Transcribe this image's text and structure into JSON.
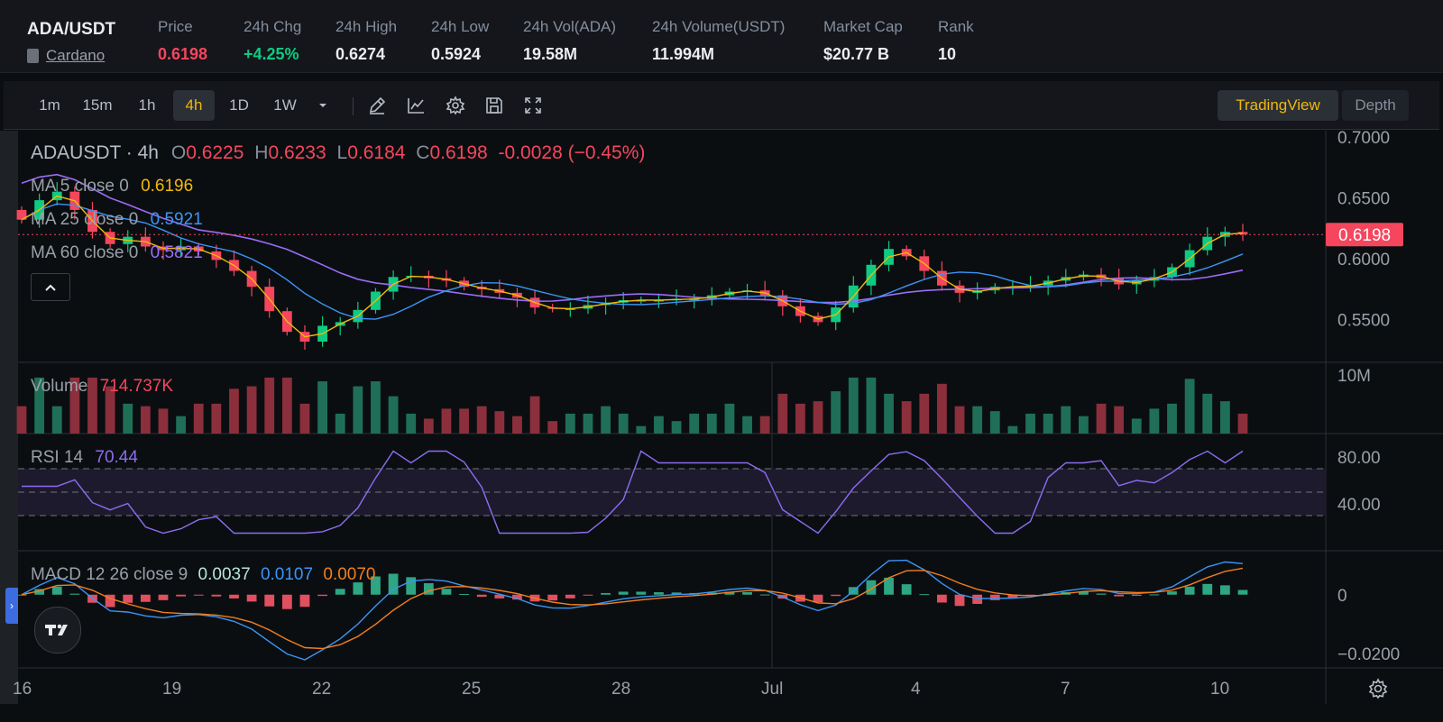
{
  "ticker": {
    "pair": "ADA/USDT",
    "coin_name": "Cardano",
    "stats": [
      {
        "label": "Price",
        "value": "0.6198",
        "color": "#f6465d"
      },
      {
        "label": "24h Chg",
        "value": "+4.25%",
        "color": "#0ecb81"
      },
      {
        "label": "24h High",
        "value": "0.6274",
        "color": "#eaecef"
      },
      {
        "label": "24h Low",
        "value": "0.5924",
        "color": "#eaecef"
      },
      {
        "label": "24h Vol(ADA)",
        "value": "19.58M",
        "color": "#eaecef"
      },
      {
        "label": "24h Volume(USDT)",
        "value": "11.994M",
        "color": "#eaecef"
      },
      {
        "label": "Market Cap",
        "value": "$20.77 B",
        "color": "#eaecef"
      },
      {
        "label": "Rank",
        "value": "10",
        "color": "#eaecef"
      }
    ]
  },
  "toolbar": {
    "intervals": [
      "1m",
      "15m",
      "1h",
      "4h",
      "1D",
      "1W"
    ],
    "active_interval": "4h",
    "icons": [
      "chevron-down-icon",
      "pencil-icon",
      "line-chart-icon",
      "settings-gear-icon",
      "save-icon",
      "fullscreen-icon"
    ],
    "view_tradingview": "TradingView",
    "view_depth": "Depth"
  },
  "legend": {
    "symbol": "ADAUSDT · 4h",
    "o_label": "O",
    "o": "0.6225",
    "h_label": "H",
    "h": "0.6233",
    "l_label": "L",
    "l": "0.6184",
    "c_label": "C",
    "c": "0.6198",
    "change": "-0.0028 (−0.45%)",
    "ma5_label": "MA 5 close 0",
    "ma5": "0.6196",
    "ma25_label": "MA 25 close 0",
    "ma25": "0.5921",
    "ma60_label": "MA 60 close 0",
    "ma60": "0.5821",
    "volume_label": "Volume",
    "volume": "714.737K",
    "rsi_label": "RSI 14",
    "rsi": "70.44",
    "macd_label": "MACD 12 26 close 9",
    "macd_hist": "0.0037",
    "macd_line": "0.0107",
    "macd_signal": "0.0070"
  },
  "axes": {
    "price_ticks": [
      "0.7000",
      "0.6500",
      "0.6000",
      "0.5500"
    ],
    "current_price": "0.6198",
    "volume_tick": "10M",
    "rsi_ticks": [
      "80.00",
      "40.00"
    ],
    "macd_ticks": [
      "0",
      "−0.0200"
    ],
    "date_ticks": [
      "16",
      "19",
      "22",
      "25",
      "28",
      "Jul",
      "4",
      "7",
      "10"
    ]
  },
  "colors": {
    "up": "#0ecb81",
    "down": "#f6465d",
    "accent": "#f0b90b",
    "ma5": "#f0b90b",
    "ma25": "#3b95f5",
    "ma60": "#9b6cf7",
    "rsi": "#8c6cf0",
    "macd_line": "#3b95f5",
    "macd_signal": "#f07f1f"
  },
  "chart_data": {
    "type": "candlestick",
    "symbol": "ADAUSDT",
    "interval": "4h",
    "x": [
      "16",
      "19",
      "22",
      "25",
      "28",
      "Jul",
      "4",
      "7",
      "10"
    ],
    "price_closes": [
      0.632,
      0.648,
      0.655,
      0.64,
      0.622,
      0.612,
      0.618,
      0.61,
      0.607,
      0.61,
      0.606,
      0.599,
      0.59,
      0.577,
      0.557,
      0.54,
      0.532,
      0.545,
      0.548,
      0.558,
      0.573,
      0.585,
      0.586,
      0.584,
      0.582,
      0.577,
      0.575,
      0.572,
      0.568,
      0.56,
      0.559,
      0.559,
      0.562,
      0.564,
      0.566,
      0.566,
      0.566,
      0.567,
      0.567,
      0.57,
      0.573,
      0.574,
      0.57,
      0.561,
      0.553,
      0.548,
      0.56,
      0.578,
      0.595,
      0.608,
      0.602,
      0.59,
      0.578,
      0.572,
      0.574,
      0.577,
      0.577,
      0.578,
      0.582,
      0.585,
      0.587,
      0.584,
      0.579,
      0.582,
      0.585,
      0.593,
      0.607,
      0.618,
      0.622,
      0.62
    ],
    "ylim": [
      0.515,
      0.705
    ],
    "volume_ylim": [
      0,
      10000000
    ],
    "rsi_ylim": [
      0,
      100
    ],
    "rsi_bands": [
      30,
      50,
      70
    ],
    "macd_ylim": [
      -0.025,
      0.015
    ],
    "series": [
      {
        "name": "MA 5 close 0",
        "last": 0.6196
      },
      {
        "name": "MA 25 close 0",
        "last": 0.5921
      },
      {
        "name": "MA 60 close 0",
        "last": 0.5821
      },
      {
        "name": "Volume",
        "last": 714737
      },
      {
        "name": "RSI 14",
        "last": 70.44
      },
      {
        "name": "MACD 12 26 close 9",
        "histogram": 0.0037,
        "macd": 0.0107,
        "signal": 0.007
      }
    ]
  }
}
